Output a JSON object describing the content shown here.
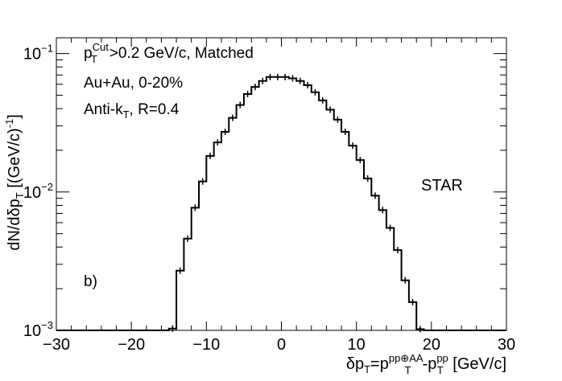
{
  "chart_data": {
    "type": "histogram",
    "scale_y": "log",
    "xlim": [
      -30,
      30
    ],
    "ylim": [
      0.001,
      0.13
    ],
    "x_ticks": [
      {
        "value": -30,
        "label": "−30"
      },
      {
        "value": -20,
        "label": "−20"
      },
      {
        "value": -10,
        "label": "−10"
      },
      {
        "value": 0,
        "label": "0"
      },
      {
        "value": 10,
        "label": "10"
      },
      {
        "value": 20,
        "label": "20"
      },
      {
        "value": 30,
        "label": "30"
      }
    ],
    "y_ticks": [
      {
        "value": 0.001,
        "base": "10",
        "exp": "−3"
      },
      {
        "value": 0.01,
        "base": "10",
        "exp": "−2"
      },
      {
        "value": 0.1,
        "base": "10",
        "exp": "−1"
      }
    ],
    "xlabel": {
      "delta": "δp",
      "sub1": "T",
      "eq": "=p",
      "sup2": "pp⊕AA",
      "sub2": "T",
      "minus": "-p",
      "sup3": "pp",
      "sub3": "T",
      "unit": " [GeV/c]"
    },
    "ylabel": {
      "pre": "dN/dδp",
      "sub": "T",
      "unit": " [(GeV/c)",
      "sup": "-1",
      "close": "]"
    },
    "annotations": {
      "line1_p": "p",
      "line1_sup": "Cut",
      "line1_sub": "T",
      "line1_rest": ">0.2 GeV/c, Matched",
      "line2": "Au+Au, 0-20%",
      "line3_pre": "Anti-k",
      "line3_sub": "T",
      "line3_rest": ", R=0.4",
      "panel": "b)",
      "experiment": "STAR"
    },
    "colors": {
      "experiment": "#0b3a9c",
      "line": "#000000"
    },
    "bin_width": 1,
    "bins": [
      {
        "x0": -15,
        "y": 0.00103
      },
      {
        "x0": -14,
        "y": 0.0027
      },
      {
        "x0": -13,
        "y": 0.0046
      },
      {
        "x0": -12,
        "y": 0.0077
      },
      {
        "x0": -11,
        "y": 0.0119
      },
      {
        "x0": -10,
        "y": 0.0182
      },
      {
        "x0": -9,
        "y": 0.0228
      },
      {
        "x0": -8,
        "y": 0.0272
      },
      {
        "x0": -7,
        "y": 0.0343
      },
      {
        "x0": -6,
        "y": 0.0425
      },
      {
        "x0": -5,
        "y": 0.051
      },
      {
        "x0": -4,
        "y": 0.0574
      },
      {
        "x0": -3,
        "y": 0.0634
      },
      {
        "x0": -2,
        "y": 0.0677
      },
      {
        "x0": -1,
        "y": 0.0677
      },
      {
        "x0": 0,
        "y": 0.0677
      },
      {
        "x0": 1,
        "y": 0.0662
      },
      {
        "x0": 2,
        "y": 0.0634
      },
      {
        "x0": 3,
        "y": 0.0591
      },
      {
        "x0": 4,
        "y": 0.0525
      },
      {
        "x0": 5,
        "y": 0.0459
      },
      {
        "x0": 6,
        "y": 0.0393
      },
      {
        "x0": 7,
        "y": 0.0333
      },
      {
        "x0": 8,
        "y": 0.0272
      },
      {
        "x0": 9,
        "y": 0.0216
      },
      {
        "x0": 10,
        "y": 0.017
      },
      {
        "x0": 11,
        "y": 0.0125
      },
      {
        "x0": 12,
        "y": 0.0094
      },
      {
        "x0": 13,
        "y": 0.0074
      },
      {
        "x0": 14,
        "y": 0.0055
      },
      {
        "x0": 15,
        "y": 0.0038
      },
      {
        "x0": 16,
        "y": 0.0023
      },
      {
        "x0": 17,
        "y": 0.0016
      },
      {
        "x0": 18,
        "y": 0.00102
      }
    ]
  }
}
